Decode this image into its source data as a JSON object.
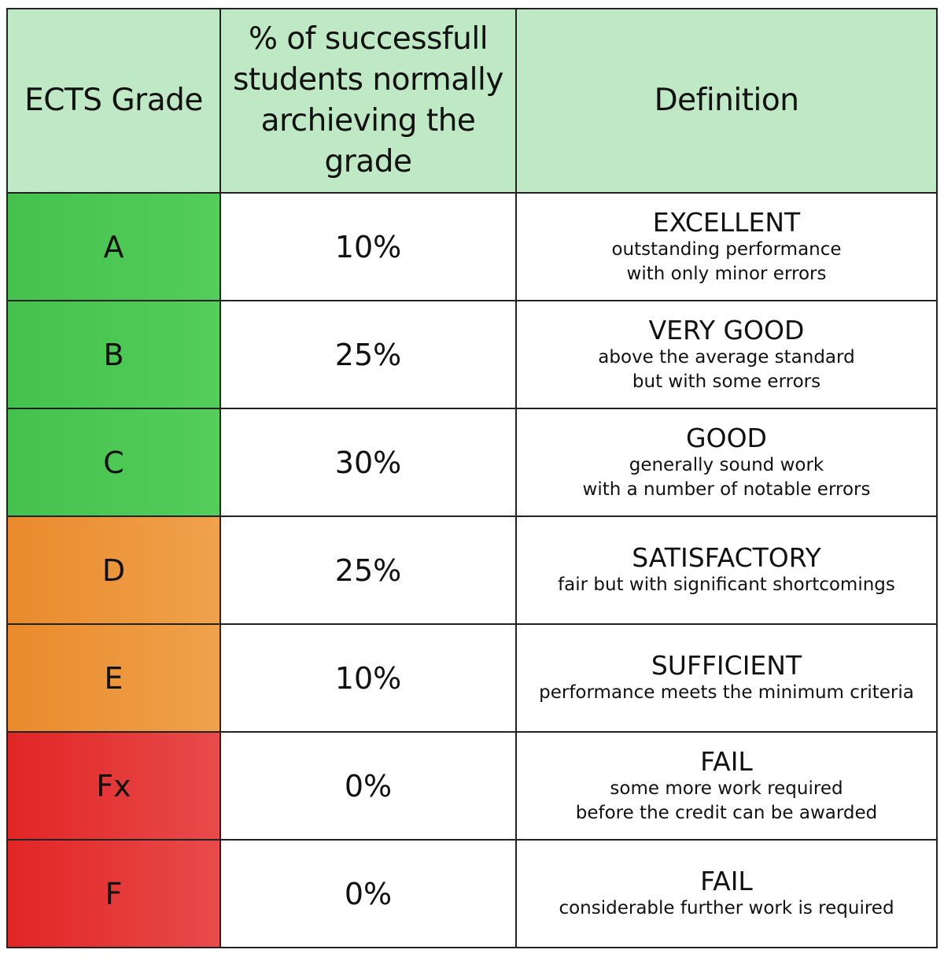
{
  "header": {
    "grade": "ECTS Grade",
    "percent_lines": [
      "% of successfull",
      "students normally",
      "archieving the grade"
    ],
    "definition": "Definition"
  },
  "colors": {
    "header_bg": "#bfe8c5",
    "green": "#4cc853",
    "orange": "#ec962f",
    "red": "#e22a2a"
  },
  "rows": [
    {
      "grade": "A",
      "percent": "10%",
      "title": "EXCELLENT",
      "desc": [
        "outstanding performance",
        "with only minor errors"
      ],
      "color": "green"
    },
    {
      "grade": "B",
      "percent": "25%",
      "title": "VERY GOOD",
      "desc": [
        "above the average standard",
        "but with some errors"
      ],
      "color": "green"
    },
    {
      "grade": "C",
      "percent": "30%",
      "title": "GOOD",
      "desc": [
        "generally sound work",
        "with a number of notable errors"
      ],
      "color": "green"
    },
    {
      "grade": "D",
      "percent": "25%",
      "title": "SATISFACTORY",
      "desc": [
        "fair but with significant shortcomings"
      ],
      "color": "orange"
    },
    {
      "grade": "E",
      "percent": "10%",
      "title": "SUFFICIENT",
      "desc": [
        "performance meets the minimum criteria"
      ],
      "color": "orange"
    },
    {
      "grade": "Fx",
      "percent": "0%",
      "title": "FAIL",
      "desc": [
        "some more work required",
        "before the credit can be awarded"
      ],
      "color": "red"
    },
    {
      "grade": "F",
      "percent": "0%",
      "title": "FAIL",
      "desc": [
        "considerable further work is required"
      ],
      "color": "red"
    }
  ]
}
